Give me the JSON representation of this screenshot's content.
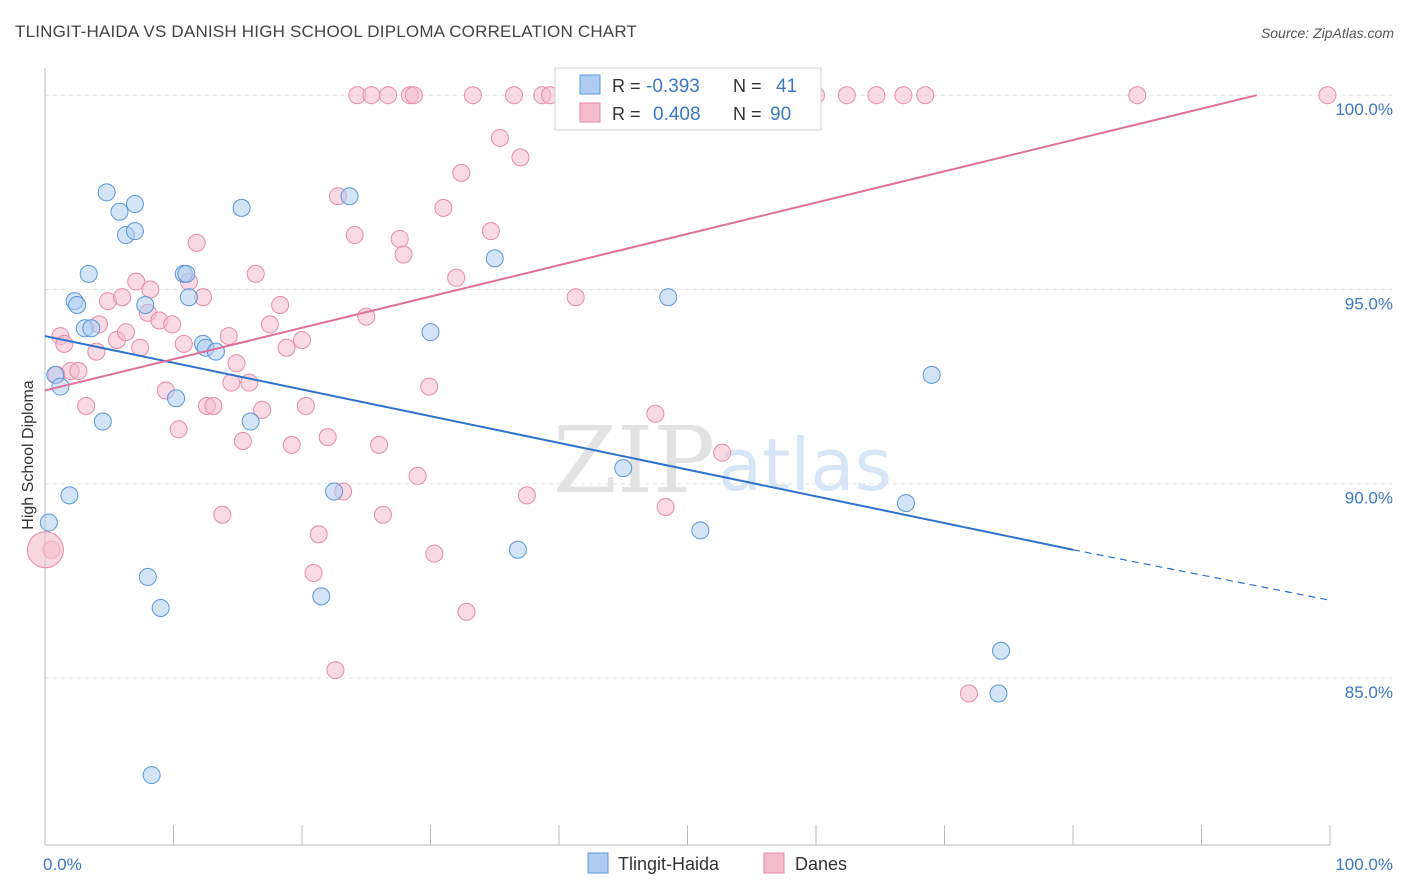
{
  "title": "TLINGIT-HAIDA VS DANISH HIGH SCHOOL DIPLOMA CORRELATION CHART",
  "source": "Source: ZipAtlas.com",
  "watermark": {
    "zip": "ZIP",
    "atlas": "atlas"
  },
  "colors": {
    "blue": "#5b97d9",
    "blue_fill": "#aecdf0",
    "blue_line": "#2f72cc",
    "pink": "#e88aa8",
    "pink_fill": "#f4bccd",
    "pink_line": "#e0709a",
    "tick": "#3b78c4",
    "grid": "#e3e3e3"
  },
  "legend": {
    "rows": [
      {
        "r_label": "R = ",
        "r_value": "-0.393",
        "n_label": "N = ",
        "n_value": "41"
      },
      {
        "r_label": "R = ",
        "r_value": "0.408",
        "n_label": "N = ",
        "n_value": "90"
      }
    ]
  },
  "chart_data": {
    "type": "scatter",
    "title": "TLINGIT-HAIDA VS DANISH HIGH SCHOOL DIPLOMA CORRELATION CHART",
    "xlabel": "",
    "ylabel": "High School Diploma",
    "xlim": [
      0,
      100
    ],
    "ylim": [
      80.7,
      100.7
    ],
    "x_tick_labels": [
      "0.0%",
      "100.0%"
    ],
    "y_ticks": [
      85,
      90,
      95,
      100
    ],
    "y_tick_labels": [
      "85.0%",
      "90.0%",
      "95.0%",
      "100.0%"
    ],
    "grid": true,
    "legend_position": "top-center",
    "series": [
      {
        "name": "Tlingit-Haida",
        "r": -0.393,
        "n": 41,
        "trend": {
          "x0": 0,
          "y0": 93.8,
          "x1": 80,
          "y1": 88.3,
          "dash_to_x": 100,
          "dash_to_y": 87.0
        },
        "points": [
          [
            0.3,
            89.0
          ],
          [
            0.8,
            92.8
          ],
          [
            1.2,
            92.5
          ],
          [
            1.9,
            89.7
          ],
          [
            2.3,
            94.7
          ],
          [
            2.5,
            94.6
          ],
          [
            3.1,
            94.0
          ],
          [
            3.4,
            95.4
          ],
          [
            4.5,
            91.6
          ],
          [
            4.8,
            97.5
          ],
          [
            5.8,
            97.0
          ],
          [
            6.3,
            96.4
          ],
          [
            7.0,
            96.5
          ],
          [
            7.0,
            97.2
          ],
          [
            7.8,
            94.6
          ],
          [
            8.0,
            87.6
          ],
          [
            8.3,
            82.5
          ],
          [
            9.0,
            86.8
          ],
          [
            10.2,
            92.2
          ],
          [
            10.8,
            95.4
          ],
          [
            11.0,
            95.4
          ],
          [
            11.2,
            94.8
          ],
          [
            12.3,
            93.6
          ],
          [
            12.5,
            93.5
          ],
          [
            13.3,
            93.4
          ],
          [
            15.3,
            97.1
          ],
          [
            16.0,
            91.6
          ],
          [
            21.5,
            87.1
          ],
          [
            22.5,
            89.8
          ],
          [
            23.7,
            97.4
          ],
          [
            30.0,
            93.9
          ],
          [
            35.0,
            95.8
          ],
          [
            36.8,
            88.3
          ],
          [
            45.0,
            90.4
          ],
          [
            48.5,
            94.8
          ],
          [
            51.0,
            88.8
          ],
          [
            69.0,
            92.8
          ],
          [
            67.0,
            89.5
          ],
          [
            74.4,
            85.7
          ],
          [
            74.2,
            84.6
          ],
          [
            3.6,
            94.0
          ]
        ]
      },
      {
        "name": "Danes",
        "r": 0.408,
        "n": 90,
        "trend": {
          "x0": 0,
          "y0": 92.4,
          "x1": 94.3,
          "y1": 100.0
        },
        "points": [
          [
            0.5,
            88.3
          ],
          [
            0.9,
            92.8
          ],
          [
            1.2,
            93.8
          ],
          [
            1.5,
            93.6
          ],
          [
            2.0,
            92.9
          ],
          [
            2.6,
            92.9
          ],
          [
            3.2,
            92.0
          ],
          [
            4.0,
            93.4
          ],
          [
            4.2,
            94.1
          ],
          [
            4.9,
            94.7
          ],
          [
            5.6,
            93.7
          ],
          [
            6.0,
            94.8
          ],
          [
            6.3,
            93.9
          ],
          [
            7.1,
            95.2
          ],
          [
            7.4,
            93.5
          ],
          [
            8.0,
            94.4
          ],
          [
            8.2,
            95.0
          ],
          [
            8.9,
            94.2
          ],
          [
            9.4,
            92.4
          ],
          [
            9.9,
            94.1
          ],
          [
            10.4,
            91.4
          ],
          [
            10.8,
            93.6
          ],
          [
            11.2,
            95.2
          ],
          [
            11.8,
            96.2
          ],
          [
            12.3,
            94.8
          ],
          [
            12.6,
            92.0
          ],
          [
            13.1,
            92.0
          ],
          [
            13.8,
            89.2
          ],
          [
            14.3,
            93.8
          ],
          [
            14.5,
            92.6
          ],
          [
            14.9,
            93.1
          ],
          [
            15.4,
            91.1
          ],
          [
            15.9,
            92.6
          ],
          [
            16.4,
            95.4
          ],
          [
            16.9,
            91.9
          ],
          [
            17.5,
            94.1
          ],
          [
            18.3,
            94.6
          ],
          [
            18.8,
            93.5
          ],
          [
            19.2,
            91.0
          ],
          [
            20.0,
            93.7
          ],
          [
            20.3,
            92.0
          ],
          [
            20.9,
            87.7
          ],
          [
            21.3,
            88.7
          ],
          [
            22.0,
            91.2
          ],
          [
            22.6,
            85.2
          ],
          [
            22.8,
            97.4
          ],
          [
            23.2,
            89.8
          ],
          [
            24.1,
            96.4
          ],
          [
            24.3,
            100.0
          ],
          [
            25.0,
            94.3
          ],
          [
            25.4,
            100.0
          ],
          [
            26.0,
            91.0
          ],
          [
            26.3,
            89.2
          ],
          [
            26.7,
            100.0
          ],
          [
            27.6,
            96.3
          ],
          [
            27.9,
            95.9
          ],
          [
            28.4,
            100.0
          ],
          [
            28.7,
            100.0
          ],
          [
            29.0,
            90.2
          ],
          [
            29.9,
            92.5
          ],
          [
            30.3,
            88.2
          ],
          [
            31.0,
            97.1
          ],
          [
            32.0,
            95.3
          ],
          [
            32.4,
            98.0
          ],
          [
            32.8,
            86.7
          ],
          [
            33.3,
            100.0
          ],
          [
            34.7,
            96.5
          ],
          [
            35.4,
            98.9
          ],
          [
            36.5,
            100.0
          ],
          [
            37.0,
            98.4
          ],
          [
            37.5,
            89.7
          ],
          [
            38.7,
            100.0
          ],
          [
            39.3,
            100.0
          ],
          [
            41.0,
            100.0
          ],
          [
            41.3,
            94.8
          ],
          [
            45.6,
            100.0
          ],
          [
            47.5,
            91.8
          ],
          [
            48.3,
            89.4
          ],
          [
            52.7,
            90.8
          ],
          [
            53.0,
            100.0
          ],
          [
            54.8,
            100.0
          ],
          [
            58.0,
            100.0
          ],
          [
            60.0,
            100.0
          ],
          [
            62.4,
            100.0
          ],
          [
            64.7,
            100.0
          ],
          [
            66.8,
            100.0
          ],
          [
            68.5,
            100.0
          ],
          [
            71.9,
            84.6
          ],
          [
            85.0,
            100.0
          ],
          [
            99.8,
            100.0
          ]
        ]
      }
    ]
  }
}
